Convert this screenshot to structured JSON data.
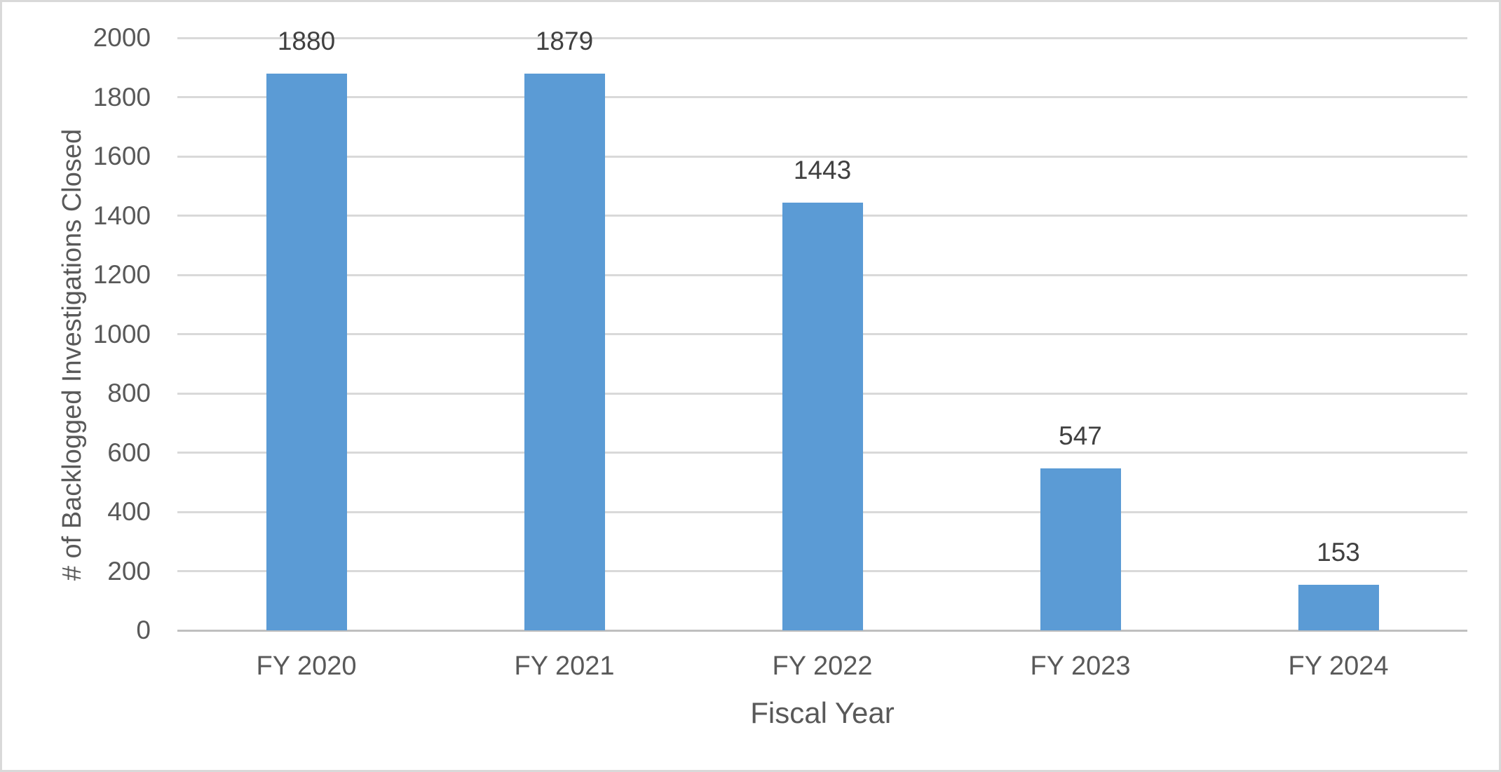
{
  "colors": {
    "bar_fill": "#5B9BD5",
    "gridline": "#D9D9D9",
    "axis_line": "#BFBFBF",
    "tick_text": "#595959",
    "category_text": "#595959",
    "axis_title_text": "#595959",
    "data_label_text": "#404040",
    "background": "#FFFFFF",
    "canvas_border": "#D9D9D9"
  },
  "chart_data": {
    "type": "bar",
    "title": "",
    "categories": [
      "FY 2020",
      "FY 2021",
      "FY 2022",
      "FY 2023",
      "FY 2024"
    ],
    "values": [
      1880,
      1879,
      1443,
      547,
      153
    ],
    "data_labels": [
      "1880",
      "1879",
      "1443",
      "547",
      "153"
    ],
    "xlabel": "Fiscal Year",
    "ylabel": "# of Backlogged Investigations Closed",
    "ylim": [
      0,
      2000
    ],
    "ytick_interval": 200,
    "yticks": [
      0,
      200,
      400,
      600,
      800,
      1000,
      1200,
      1400,
      1600,
      1800,
      2000
    ],
    "grid": "horizontal",
    "legend": "none",
    "series_name": ""
  }
}
